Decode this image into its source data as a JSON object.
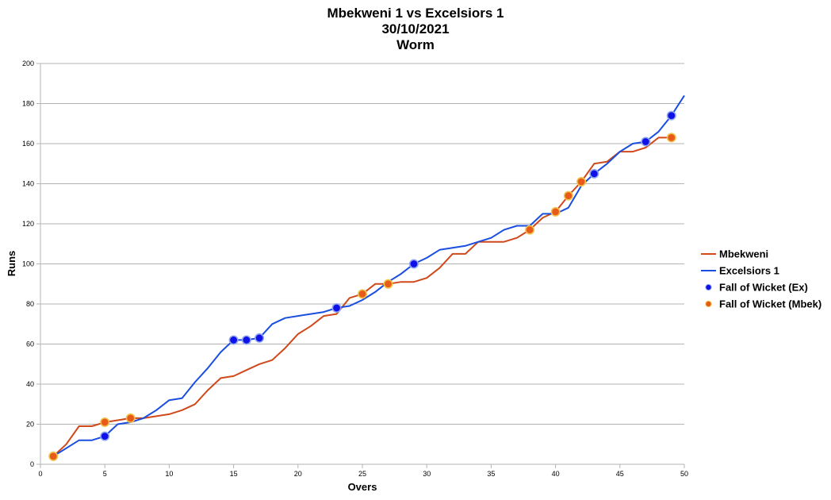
{
  "chart_data": {
    "type": "line",
    "title": [
      "Mbekweni 1 vs Excelsiors 1",
      "30/10/2021",
      "Worm"
    ],
    "xlabel": "Overs",
    "ylabel": "Runs",
    "xlim": [
      0,
      50
    ],
    "ylim": [
      0,
      200
    ],
    "xticks": [
      0,
      5,
      10,
      15,
      20,
      25,
      30,
      35,
      40,
      45,
      50
    ],
    "yticks": [
      0,
      20,
      40,
      60,
      80,
      100,
      120,
      140,
      160,
      180,
      200
    ],
    "grid": true,
    "legend_position": "right",
    "series": [
      {
        "name": "Mbekweni",
        "kind": "line",
        "color": "#d0491b",
        "x": [
          1,
          2,
          3,
          4,
          5,
          6,
          7,
          8,
          9,
          10,
          11,
          12,
          13,
          14,
          15,
          16,
          17,
          18,
          19,
          20,
          21,
          22,
          23,
          24,
          25,
          26,
          27,
          28,
          29,
          30,
          31,
          32,
          33,
          34,
          35,
          36,
          37,
          38,
          39,
          40,
          41,
          42,
          43,
          44,
          45,
          46,
          47,
          48,
          49
        ],
        "y": [
          4,
          10,
          19,
          19,
          21,
          22,
          23,
          23,
          24,
          25,
          27,
          30,
          37,
          43,
          44,
          47,
          50,
          52,
          58,
          65,
          69,
          74,
          75,
          83,
          85,
          90,
          90,
          91,
          91,
          93,
          98,
          105,
          105,
          111,
          111,
          111,
          113,
          117,
          123,
          126,
          134,
          141,
          150,
          151,
          156,
          156,
          158,
          163,
          163
        ]
      },
      {
        "name": "Excelsiors 1",
        "kind": "line",
        "color": "#1a4ee0",
        "x": [
          1,
          2,
          3,
          4,
          5,
          6,
          7,
          8,
          9,
          10,
          11,
          12,
          13,
          14,
          15,
          16,
          17,
          18,
          19,
          20,
          21,
          22,
          23,
          24,
          25,
          26,
          27,
          28,
          29,
          30,
          31,
          32,
          33,
          34,
          35,
          36,
          37,
          38,
          39,
          40,
          41,
          42,
          43,
          44,
          45,
          46,
          47,
          48,
          49,
          50
        ],
        "y": [
          4,
          8,
          12,
          12,
          14,
          20,
          21,
          23,
          27,
          32,
          33,
          41,
          48,
          56,
          62,
          62,
          63,
          70,
          73,
          74,
          75,
          76,
          78,
          79,
          82,
          86,
          91,
          95,
          100,
          103,
          107,
          108,
          109,
          111,
          113,
          117,
          119,
          119,
          125,
          125,
          128,
          139,
          145,
          150,
          156,
          160,
          161,
          166,
          174,
          184
        ]
      },
      {
        "name": "Fall of Wicket (Ex)",
        "kind": "scatter",
        "color": "#1010e8",
        "x": [
          5,
          15,
          16,
          17,
          23,
          29,
          43,
          47,
          49
        ],
        "y": [
          14,
          62,
          62,
          63,
          78,
          100,
          145,
          161,
          174
        ]
      },
      {
        "name": "Fall of Wicket (Mbek)",
        "kind": "scatter",
        "color": "#e85a1a",
        "x": [
          1,
          5,
          7,
          25,
          27,
          38,
          40,
          41,
          42,
          49
        ],
        "y": [
          4,
          21,
          23,
          85,
          90,
          117,
          126,
          134,
          141,
          163
        ]
      }
    ]
  }
}
